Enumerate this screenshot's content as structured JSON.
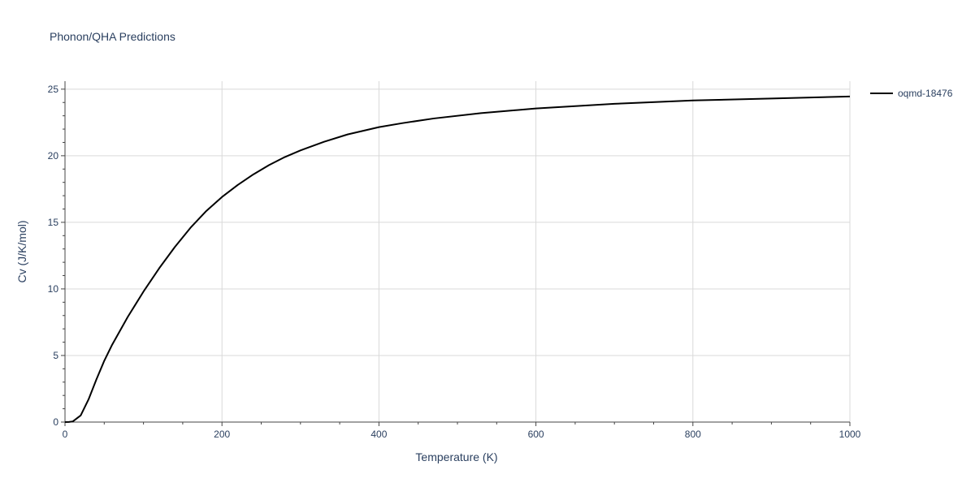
{
  "chart_data": {
    "type": "line",
    "title": "Phonon/QHA Predictions",
    "xlabel": "Temperature (K)",
    "ylabel": "Cv (J/K/mol)",
    "xlim": [
      0,
      1000
    ],
    "ylim": [
      0,
      25.6
    ],
    "x_ticks": [
      0,
      200,
      400,
      600,
      800,
      1000
    ],
    "y_ticks": [
      0,
      5,
      10,
      15,
      20,
      25
    ],
    "x_tick_labels": [
      "0",
      "200",
      "400",
      "600",
      "800",
      "1000"
    ],
    "y_tick_labels": [
      "0",
      "5",
      "10",
      "15",
      "20",
      "25"
    ],
    "grid": true,
    "legend_position": "top-right",
    "series": [
      {
        "name": "oqmd-18476",
        "color": "#000000",
        "x": [
          0,
          5,
          10,
          20,
          30,
          40,
          50,
          60,
          70,
          80,
          90,
          100,
          120,
          140,
          160,
          180,
          200,
          220,
          240,
          260,
          280,
          300,
          330,
          360,
          400,
          430,
          470,
          530,
          600,
          700,
          800,
          900,
          1000
        ],
        "y": [
          0.0,
          0.01,
          0.05,
          0.5,
          1.7,
          3.2,
          4.6,
          5.8,
          6.85,
          7.9,
          8.85,
          9.8,
          11.55,
          13.15,
          14.6,
          15.85,
          16.9,
          17.8,
          18.6,
          19.3,
          19.9,
          20.4,
          21.05,
          21.6,
          22.15,
          22.45,
          22.8,
          23.2,
          23.55,
          23.9,
          24.15,
          24.3,
          24.45
        ]
      }
    ]
  }
}
